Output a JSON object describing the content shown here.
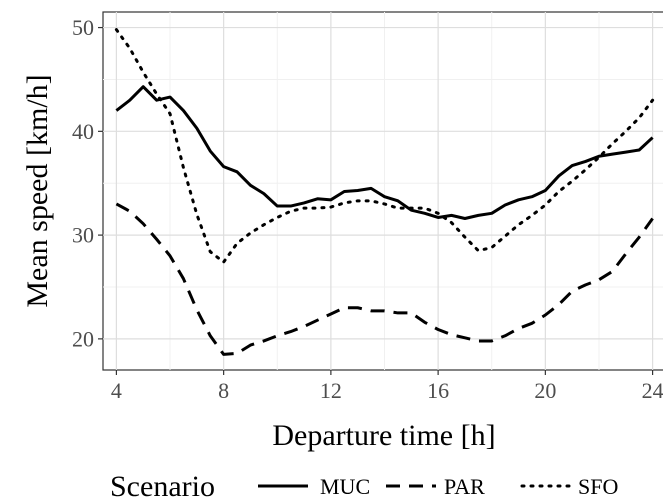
{
  "chart_data": {
    "type": "line",
    "xlabel": "Departure time [h]",
    "ylabel": "Mean speed [km/h]",
    "xlim": [
      3.5,
      24.5
    ],
    "ylim": [
      17,
      51.5
    ],
    "xticks": [
      4,
      8,
      12,
      16,
      20,
      24
    ],
    "yticks": [
      20,
      30,
      40,
      50
    ],
    "xtick_labels": [
      "4",
      "8",
      "12",
      "16",
      "20",
      "24"
    ],
    "ytick_labels": [
      "20",
      "30",
      "40",
      "50"
    ],
    "grid": true,
    "legend": {
      "title": "Scenario",
      "position": "bottom",
      "entries": [
        "MUC",
        "PAR",
        "SFO"
      ]
    },
    "series": [
      {
        "name": "MUC",
        "linestyle": "solid",
        "color": "#000000",
        "x": [
          4,
          4.5,
          5,
          5.5,
          6,
          6.5,
          7,
          7.5,
          8,
          8.5,
          9,
          9.5,
          10,
          10.5,
          11,
          11.5,
          12,
          12.5,
          13,
          13.5,
          14,
          14.5,
          15,
          15.5,
          16,
          16.5,
          17,
          17.5,
          18,
          18.5,
          19,
          19.5,
          20,
          20.5,
          21,
          21.5,
          22,
          22.5,
          23,
          23.5,
          24
        ],
        "y": [
          42,
          43,
          44.3,
          43,
          43.3,
          42,
          40.3,
          38.1,
          36.6,
          36.1,
          34.8,
          34,
          32.8,
          32.8,
          33.1,
          33.5,
          33.4,
          34.2,
          34.3,
          34.5,
          33.7,
          33.3,
          32.4,
          32.1,
          31.7,
          31.9,
          31.6,
          31.9,
          32.1,
          32.9,
          33.4,
          33.7,
          34.3,
          35.7,
          36.7,
          37.1,
          37.6,
          37.8,
          38.0,
          38.2,
          39.4
        ]
      },
      {
        "name": "PAR",
        "linestyle": "dashed",
        "color": "#000000",
        "x": [
          4,
          4.5,
          5,
          5.5,
          6,
          6.5,
          7,
          7.5,
          8,
          8.5,
          9,
          9.5,
          10,
          10.5,
          11,
          11.5,
          12,
          12.5,
          13,
          13.5,
          14,
          14.5,
          15,
          15.5,
          16,
          16.5,
          17,
          17.5,
          18,
          18.5,
          19,
          19.5,
          20,
          20.5,
          21,
          21.5,
          22,
          22.5,
          23,
          23.5,
          24
        ],
        "y": [
          33,
          32.3,
          31.1,
          29.6,
          28.0,
          25.8,
          22.8,
          20.3,
          18.5,
          18.6,
          19.4,
          19.8,
          20.3,
          20.7,
          21.2,
          21.8,
          22.4,
          23.0,
          23.0,
          22.7,
          22.7,
          22.5,
          22.5,
          21.6,
          20.9,
          20.4,
          20.1,
          19.8,
          19.8,
          20.3,
          21.0,
          21.5,
          22.3,
          23.3,
          24.6,
          25.2,
          25.7,
          26.5,
          28.2,
          29.8,
          31.6
        ]
      },
      {
        "name": "SFO",
        "linestyle": "dotted",
        "color": "#000000",
        "x": [
          4,
          4.5,
          5,
          5.5,
          6,
          6.5,
          7,
          7.5,
          8,
          8.5,
          9,
          9.5,
          10,
          10.5,
          11,
          11.5,
          12,
          12.5,
          13,
          13.5,
          14,
          14.5,
          15,
          15.5,
          16,
          16.5,
          17,
          17.5,
          18,
          18.5,
          19,
          19.5,
          20,
          20.5,
          21,
          21.5,
          22,
          22.5,
          23,
          23.5,
          24
        ],
        "y": [
          49.8,
          48.0,
          45.7,
          43.6,
          41.7,
          36.5,
          32.0,
          28.4,
          27.4,
          29.2,
          30.2,
          31.0,
          31.7,
          32.3,
          32.6,
          32.6,
          32.7,
          33.1,
          33.3,
          33.3,
          33.0,
          32.6,
          32.6,
          32.6,
          32.1,
          31.2,
          29.8,
          28.5,
          28.8,
          29.9,
          31.0,
          31.9,
          32.9,
          34.2,
          35.2,
          36.3,
          37.5,
          38.8,
          40.0,
          41.3,
          43.0
        ]
      }
    ]
  }
}
